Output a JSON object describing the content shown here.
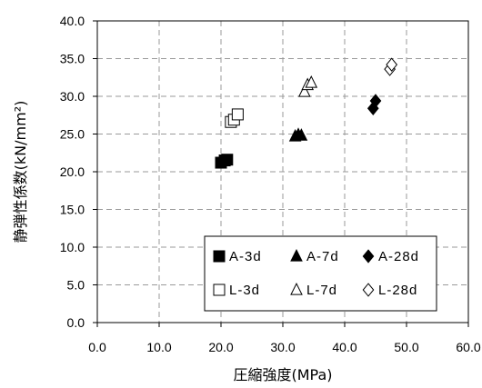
{
  "chart_data": {
    "type": "scatter",
    "xlabel": "圧縮強度(MPa)",
    "ylabel": "静弾性係数(kN/mm²)",
    "xlim": [
      0,
      60
    ],
    "ylim": [
      0,
      40
    ],
    "x_ticks": [
      "0.0",
      "10.0",
      "20.0",
      "30.0",
      "40.0",
      "50.0",
      "60.0"
    ],
    "y_ticks": [
      "0.0",
      "5.0",
      "10.0",
      "15.0",
      "20.0",
      "25.0",
      "30.0",
      "35.0",
      "40.0"
    ],
    "grid": "dashed",
    "legend_position": "bottom-right",
    "series": [
      {
        "name": "A-3d",
        "marker": "square",
        "filled": true,
        "points": [
          [
            20.0,
            21.2
          ],
          [
            20.6,
            21.5
          ],
          [
            21.0,
            21.6
          ]
        ]
      },
      {
        "name": "A-7d",
        "marker": "triangle",
        "filled": true,
        "points": [
          [
            32.0,
            24.7
          ],
          [
            32.5,
            24.9
          ],
          [
            33.0,
            24.8
          ]
        ]
      },
      {
        "name": "A-28d",
        "marker": "diamond",
        "filled": true,
        "points": [
          [
            44.6,
            28.4
          ],
          [
            45.0,
            29.4
          ]
        ]
      },
      {
        "name": "L-3d",
        "marker": "square",
        "filled": false,
        "points": [
          [
            21.6,
            26.6
          ],
          [
            22.1,
            26.9
          ],
          [
            22.7,
            27.6
          ]
        ]
      },
      {
        "name": "L-7d",
        "marker": "triangle",
        "filled": false,
        "points": [
          [
            33.5,
            30.6
          ],
          [
            34.0,
            31.5
          ],
          [
            34.6,
            31.8
          ]
        ]
      },
      {
        "name": "L-28d",
        "marker": "diamond",
        "filled": false,
        "points": [
          [
            47.3,
            33.6
          ],
          [
            47.6,
            34.2
          ]
        ]
      }
    ]
  }
}
